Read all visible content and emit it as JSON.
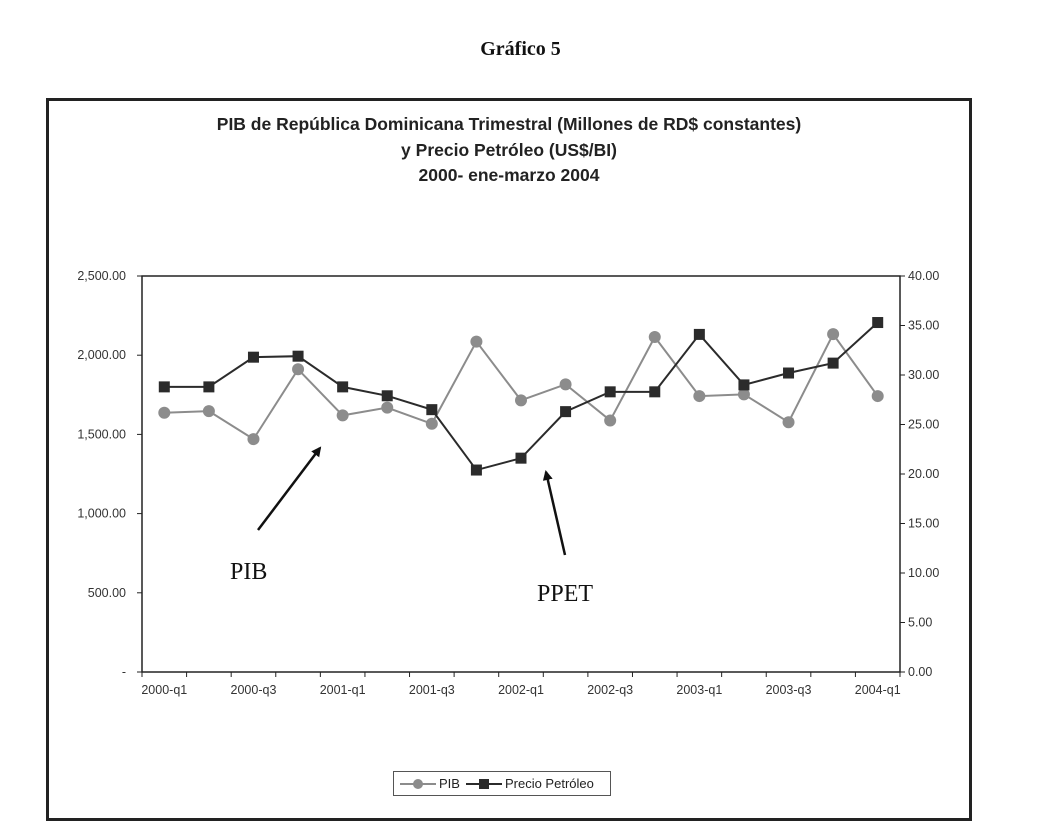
{
  "figure_label": "Gráfico 5",
  "chart_data": {
    "type": "line",
    "title": [
      "PIB de República Dominicana Trimestral (Millones de RD$ constantes)",
      "y Precio Petróleo (US$/BI)",
      "2000- ene-marzo 2004"
    ],
    "categories": [
      "2000-q1",
      "2000-q2",
      "2000-q3",
      "2000-q4",
      "2001-q1",
      "2001-q2",
      "2001-q3",
      "2001-q4",
      "2002-q1",
      "2002-q2",
      "2002-q3",
      "2002-q4",
      "2003-q1",
      "2003-q2",
      "2003-q3",
      "2003-q4",
      "2004-q1"
    ],
    "x_tick_labels": [
      "2000-q1",
      "2000-q3",
      "2001-q1",
      "2001-q3",
      "2002-q1",
      "2002-q3",
      "2003-q1",
      "2003-q3",
      "2004-q1"
    ],
    "y_left": {
      "range": [
        0,
        2500
      ],
      "tick_labels": [
        "-",
        "500.00",
        "1,000.00",
        "1,500.00",
        "2,000.00",
        "2,500.00"
      ]
    },
    "y_right": {
      "range": [
        0,
        40
      ],
      "tick_labels": [
        "0.00",
        "5.00",
        "10.00",
        "15.00",
        "20.00",
        "25.00",
        "30.00",
        "35.00",
        "40.00"
      ]
    },
    "series": [
      {
        "name": "PIB",
        "axis": "left",
        "marker": "circle",
        "color": "#8c8c8c",
        "values": [
          1637,
          1647,
          1470,
          1911,
          1620,
          1669,
          1567,
          2086,
          1715,
          1816,
          1588,
          2115,
          1742,
          1753,
          1577,
          2133,
          1742
        ]
      },
      {
        "name": "Precio Petróleo",
        "axis": "right",
        "marker": "square",
        "color": "#2b2b2b",
        "values": [
          28.8,
          28.8,
          31.8,
          31.9,
          28.8,
          27.9,
          26.5,
          20.4,
          21.6,
          26.3,
          28.3,
          28.3,
          34.1,
          29.0,
          30.2,
          31.2,
          35.3
        ]
      }
    ],
    "annotations": [
      "PIB",
      "PPET"
    ],
    "grid": false,
    "legend_placement": "bottom"
  }
}
